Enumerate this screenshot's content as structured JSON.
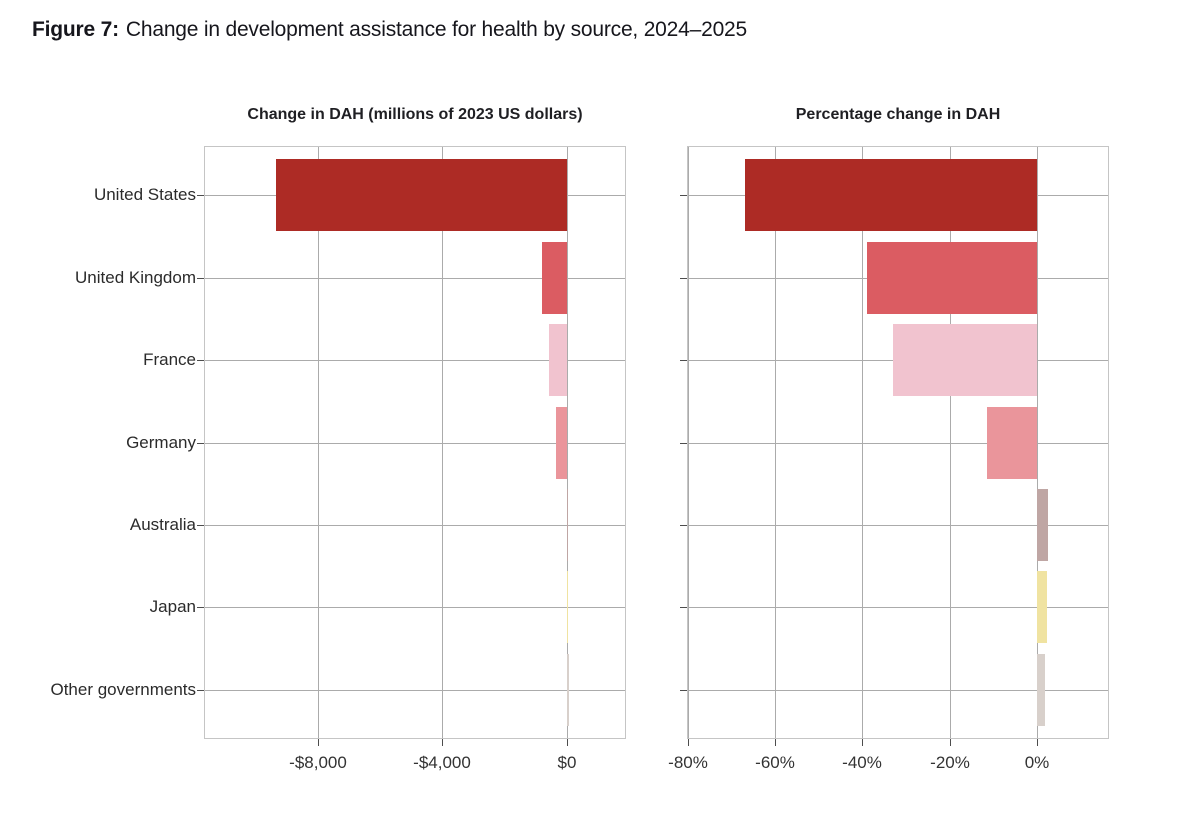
{
  "figure": {
    "label": "Figure 7:",
    "title": "Change in development assistance for health by source, 2024–2025"
  },
  "categories": [
    "United States",
    "United Kingdom",
    "France",
    "Germany",
    "Australia",
    "Japan",
    "Other governments"
  ],
  "palette": {
    "United States": "#ad2b25",
    "United Kingdom": "#db5c62",
    "France": "#f1c3cf",
    "Germany": "#ea959b",
    "Australia": "#bfa6a4",
    "Japan": "#f0e3a1",
    "Other governments": "#d8d0cb"
  },
  "chart_data": [
    {
      "id": "dollar-change",
      "type": "bar",
      "orientation": "horizontal",
      "title": "Change in DAH (millions of 2023 US dollars)",
      "categories": [
        "United States",
        "United Kingdom",
        "France",
        "Germany",
        "Australia",
        "Japan",
        "Other governments"
      ],
      "values": [
        -9350,
        -800,
        -575,
        -350,
        20,
        35,
        75
      ],
      "xlabel": "",
      "ylabel": "",
      "xlim": [
        -11660,
        1900
      ],
      "xticks": [
        {
          "value": -8000,
          "label": "-$8,000"
        },
        {
          "value": -4000,
          "label": "-$4,000"
        },
        {
          "value": 0,
          "label": "$0"
        }
      ],
      "grid": true,
      "legend": "none"
    },
    {
      "id": "percent-change",
      "type": "bar",
      "orientation": "horizontal",
      "title": "Percentage change in DAH",
      "categories": [
        "United States",
        "United Kingdom",
        "France",
        "Germany",
        "Australia",
        "Japan",
        "Other governments"
      ],
      "values": [
        -67,
        -39,
        -33,
        -11.5,
        2.6,
        2.2,
        1.9
      ],
      "xlabel": "",
      "ylabel": "",
      "xlim": [
        -80.2,
        16.5
      ],
      "xticks": [
        {
          "value": -80,
          "label": "-80%"
        },
        {
          "value": -60,
          "label": "-60%"
        },
        {
          "value": -40,
          "label": "-40%"
        },
        {
          "value": -20,
          "label": "-20%"
        },
        {
          "value": 0,
          "label": "0%"
        }
      ],
      "grid": true,
      "legend": "none"
    }
  ],
  "style": {
    "grid_color": "#ababab",
    "panel_border_color": "#c5c5c5",
    "tick_color": "#4d4d4d",
    "axis_text_color": "#333333",
    "category_text_color": "#2b2b2b",
    "title_color": "#16161c"
  }
}
